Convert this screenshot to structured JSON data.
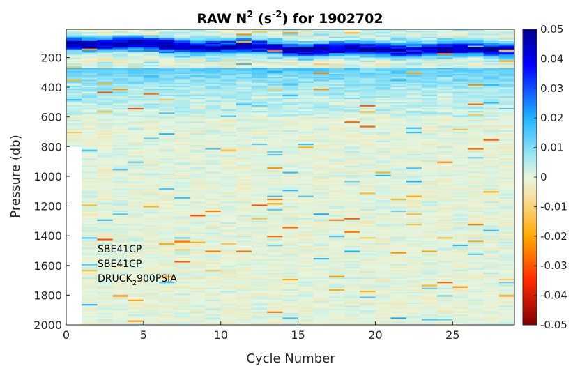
{
  "chart_data": {
    "type": "heatmap",
    "title": {
      "prefix": "RAW N",
      "sup1": "2",
      "mid": " (s",
      "sup2": "-2",
      "suffix": ") for 1902702"
    },
    "xlabel": "Cycle Number",
    "ylabel": "Pressure (db)",
    "xlim": [
      0,
      29
    ],
    "ylim": [
      2000,
      10
    ],
    "y_reversed": true,
    "xticks": [
      0,
      5,
      10,
      15,
      20,
      25
    ],
    "yticks": [
      200,
      400,
      600,
      800,
      1000,
      1200,
      1400,
      1600,
      1800,
      2000
    ],
    "colorbar": {
      "colormap": "jet-like diverging",
      "clim": [
        -0.05,
        0.05
      ],
      "ticks": [
        "0.05",
        "0.04",
        "0.03",
        "0.02",
        "0.01",
        "0",
        "-0.01",
        "-0.02",
        "-0.03",
        "-0.04",
        "-0.05"
      ]
    },
    "cycles": [
      {
        "cycle": 1,
        "max_pressure": 800
      },
      {
        "cycle": 2,
        "max_pressure": 2000
      },
      {
        "cycle": 3,
        "max_pressure": 2000
      },
      {
        "cycle": 4,
        "max_pressure": 2000
      },
      {
        "cycle": 5,
        "max_pressure": 2000
      }
    ],
    "description_values": {
      "pycnocline_pressure_range": [
        50,
        260
      ],
      "pycnocline_n2_max": 0.05,
      "deep_n2_typical": 0.0
    },
    "annotations": [
      {
        "text": "SBE41CP"
      },
      {
        "text": "SBE41CP"
      },
      {
        "text_main": "DRUCK",
        "text_sub": "2",
        "text_tail": "900PSIA"
      }
    ]
  }
}
